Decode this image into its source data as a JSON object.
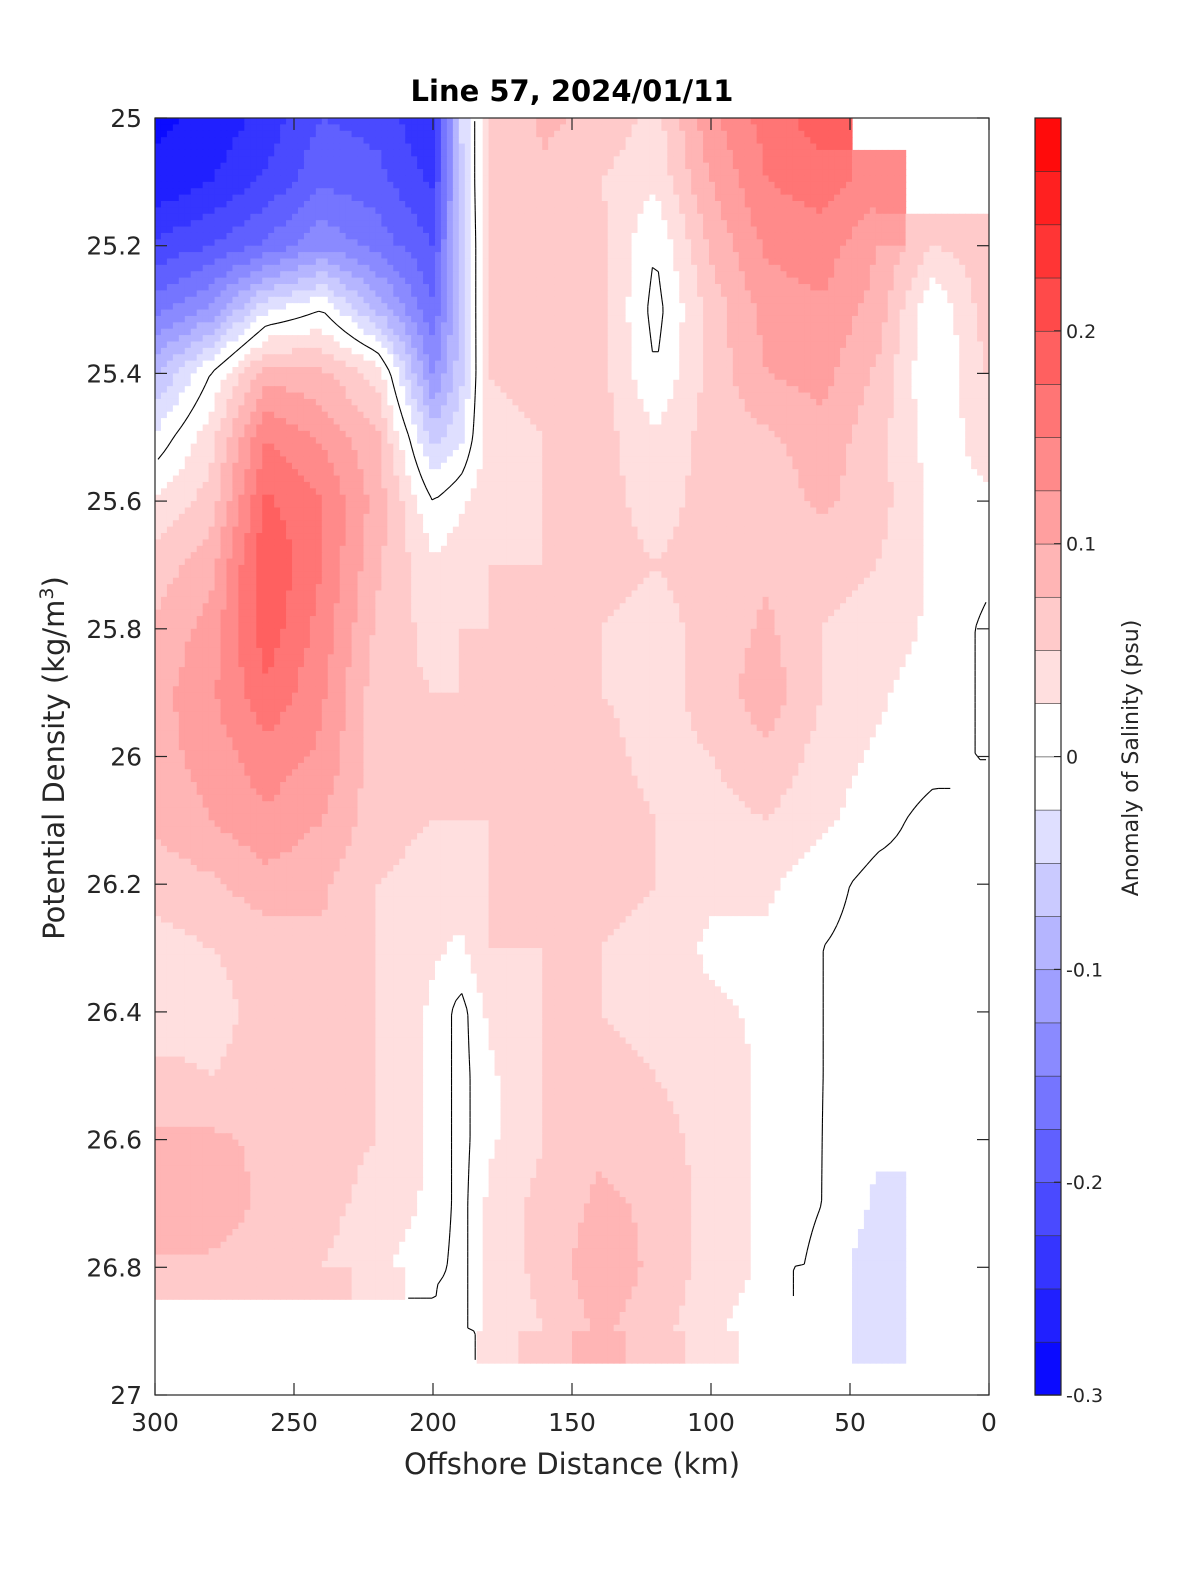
{
  "chart_data": {
    "type": "heatmap",
    "title": "Line 57, 2024/01/11",
    "xlabel": "Offshore Distance (km)",
    "ylabel_main": "Potential Density (kg/m",
    "ylabel_sup": "3",
    "ylabel_close": ")",
    "xlim": [
      300,
      0
    ],
    "ylim": [
      27,
      25
    ],
    "x_reversed": true,
    "y_reversed": true,
    "x_ticks": [
      300,
      250,
      200,
      150,
      100,
      50,
      0
    ],
    "x_tick_labels": [
      "300",
      "250",
      "200",
      "150",
      "100",
      "50",
      "0"
    ],
    "y_ticks": [
      25,
      25.2,
      25.4,
      25.6,
      25.8,
      26,
      26.2,
      26.4,
      26.6,
      26.8,
      27
    ],
    "y_tick_labels": [
      "25",
      "25.2",
      "25.4",
      "25.6",
      "25.8",
      "26",
      "26.2",
      "26.4",
      "26.6",
      "26.8",
      "27"
    ],
    "colorbar": {
      "label": "Anomaly of Salinity (psu)",
      "range": [
        -0.3,
        0.3
      ],
      "levels": 24,
      "ticks": [
        -0.3,
        -0.2,
        -0.1,
        0,
        0.1,
        0.2
      ],
      "tick_labels": [
        "-0.3",
        "-0.2",
        "-0.1",
        "0",
        "0.1",
        "0.2"
      ],
      "colormap": "blue-white-red"
    },
    "zero_contour": true,
    "anomaly_field": {
      "x": [
        300,
        280,
        260,
        240,
        220,
        200,
        190,
        180,
        160,
        140,
        120,
        100,
        80,
        60,
        40,
        20,
        5
      ],
      "y": [
        25,
        25.1,
        25.2,
        25.3,
        25.4,
        25.5,
        25.6,
        25.7,
        25.8,
        25.9,
        26,
        26.1,
        26.2,
        26.3,
        26.4,
        26.5,
        26.6,
        26.7,
        26.8,
        26.9,
        27
      ],
      "values": [
        [
          -0.28,
          -0.27,
          -0.24,
          -0.2,
          -0.21,
          -0.25,
          -0.05,
          0.05,
          0.08,
          0.07,
          0.04,
          0.12,
          0.16,
          0.19,
          null,
          null,
          null
        ],
        [
          -0.27,
          -0.25,
          -0.22,
          -0.18,
          -0.19,
          -0.23,
          -0.06,
          0.06,
          0.07,
          0.05,
          0.03,
          0.1,
          0.15,
          0.16,
          0.14,
          null,
          null
        ],
        [
          -0.22,
          -0.2,
          -0.17,
          -0.13,
          -0.16,
          -0.2,
          -0.07,
          0.06,
          0.07,
          0.06,
          0.0,
          0.08,
          0.13,
          0.14,
          0.1,
          0.05,
          0.06
        ],
        [
          -0.16,
          -0.12,
          -0.03,
          0.0,
          -0.08,
          -0.17,
          -0.07,
          0.06,
          0.06,
          0.06,
          -0.01,
          0.06,
          0.11,
          0.12,
          0.09,
          0.0,
          0.05
        ],
        [
          -0.08,
          0.0,
          0.09,
          0.08,
          0.04,
          -0.13,
          -0.06,
          0.05,
          0.06,
          0.06,
          0.0,
          0.06,
          0.1,
          0.11,
          0.07,
          0.0,
          0.04
        ],
        [
          -0.02,
          0.04,
          0.15,
          0.12,
          0.08,
          -0.06,
          -0.03,
          0.04,
          0.05,
          0.06,
          0.03,
          0.06,
          0.07,
          0.09,
          0.06,
          0.01,
          0.03
        ],
        [
          0.03,
          0.06,
          0.18,
          0.15,
          0.09,
          0.0,
          0.02,
          0.04,
          0.05,
          0.06,
          0.04,
          0.06,
          0.06,
          0.08,
          0.06,
          0.02,
          0.02
        ],
        [
          0.06,
          0.09,
          0.2,
          0.15,
          0.08,
          0.03,
          0.04,
          0.05,
          0.05,
          0.06,
          0.05,
          0.06,
          0.07,
          0.06,
          0.05,
          0.02,
          0.01
        ],
        [
          0.08,
          0.11,
          0.19,
          0.14,
          0.07,
          0.04,
          0.05,
          0.05,
          0.05,
          0.05,
          0.04,
          0.06,
          0.08,
          0.05,
          0.04,
          0.02,
          0.0
        ],
        [
          0.09,
          0.12,
          0.17,
          0.13,
          0.06,
          0.05,
          0.05,
          0.05,
          0.05,
          0.05,
          0.04,
          0.06,
          0.09,
          0.05,
          0.03,
          0.01,
          0.0
        ],
        [
          0.09,
          0.11,
          0.14,
          0.12,
          0.06,
          0.05,
          0.06,
          0.06,
          0.06,
          0.06,
          0.04,
          0.05,
          0.07,
          0.04,
          0.02,
          0.01,
          0.0
        ],
        [
          0.08,
          0.1,
          0.12,
          0.1,
          0.06,
          0.05,
          0.05,
          0.05,
          0.06,
          0.07,
          0.05,
          0.04,
          0.05,
          0.03,
          0.01,
          -0.01,
          null
        ],
        [
          0.06,
          0.07,
          0.09,
          0.08,
          0.05,
          0.04,
          0.04,
          0.05,
          0.06,
          0.06,
          0.05,
          0.03,
          0.03,
          0.01,
          -0.01,
          -0.01,
          null
        ],
        [
          0.04,
          0.05,
          0.06,
          0.07,
          0.05,
          0.03,
          0.02,
          0.05,
          0.05,
          0.05,
          0.04,
          0.02,
          0.02,
          0.0,
          -0.01,
          null,
          null
        ],
        [
          0.03,
          0.04,
          0.06,
          0.06,
          0.05,
          0.02,
          -0.01,
          0.03,
          0.05,
          0.05,
          0.04,
          0.03,
          0.02,
          0.0,
          -0.01,
          null,
          null
        ],
        [
          0.06,
          0.05,
          0.06,
          0.06,
          0.05,
          0.02,
          -0.01,
          0.02,
          0.05,
          0.06,
          0.05,
          0.04,
          0.02,
          0.0,
          -0.01,
          null,
          null
        ],
        [
          0.08,
          0.08,
          0.07,
          0.06,
          0.05,
          0.02,
          -0.01,
          0.02,
          0.05,
          0.07,
          0.06,
          0.04,
          0.02,
          0.0,
          -0.02,
          null,
          null
        ],
        [
          0.09,
          0.09,
          0.07,
          0.06,
          0.04,
          0.02,
          -0.01,
          0.03,
          0.06,
          0.08,
          0.07,
          0.04,
          0.02,
          0.0,
          -0.03,
          null,
          null
        ],
        [
          0.07,
          0.07,
          0.06,
          0.05,
          0.03,
          0.01,
          -0.01,
          0.03,
          0.06,
          0.09,
          0.07,
          0.04,
          0.02,
          -0.01,
          -0.04,
          null,
          null
        ],
        [
          null,
          null,
          null,
          null,
          null,
          -0.02,
          -0.01,
          0.03,
          0.05,
          0.08,
          0.06,
          0.03,
          0.01,
          null,
          -0.05,
          null,
          null
        ],
        [
          null,
          null,
          null,
          null,
          null,
          null,
          null,
          null,
          null,
          null,
          null,
          null,
          null,
          null,
          null,
          null,
          null
        ]
      ]
    }
  }
}
